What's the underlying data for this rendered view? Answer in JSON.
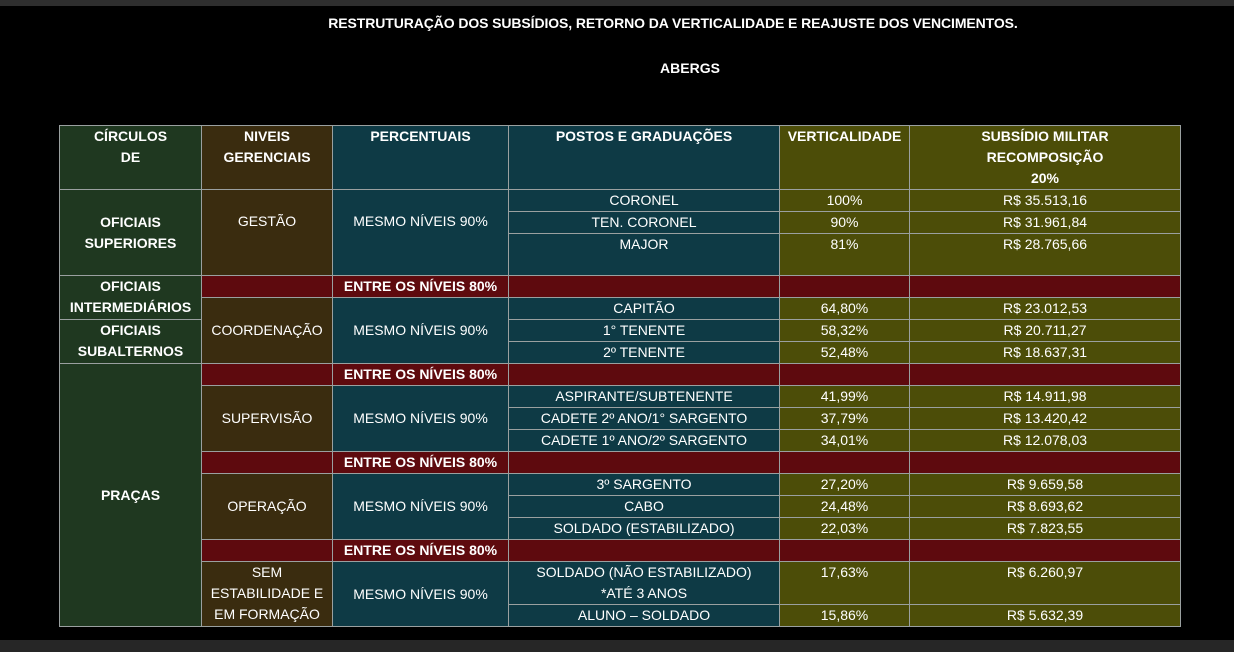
{
  "title": "RESTRUTURAÇÃO DOS SUBSÍDIOS, RETORNO DA VERTICALIDADE E REAJUSTE DOS VENCIMENTOS.",
  "subtitle": "ABERGS",
  "colors": {
    "background": "#000000",
    "circulos": "#1f3820",
    "niveis": "#3a2c0f",
    "percentuais_postos": "#0e3a45",
    "verticalidade_subsidio": "#4c4d08",
    "entre_niveis": "#5e0a0e"
  },
  "headers": {
    "circulos": [
      "CÍRCULOS",
      "DE"
    ],
    "niveis": [
      "NIVEIS",
      "GERENCIAIS"
    ],
    "percentuais": "PERCENTUAIS",
    "postos": "POSTOS E GRADUAÇÕES",
    "verticalidade": "VERTICALIDADE",
    "subsidio": [
      "SUBSÍDIO MILITAR",
      "RECOMPOSIÇÃO",
      "20%"
    ]
  },
  "circulos": {
    "oficiais_superiores": [
      "OFICIAIS",
      "SUPERIORES"
    ],
    "oficiais_intermediarios": [
      "OFICIAIS",
      "INTERMEDIÁRIOS"
    ],
    "oficiais_subalternos": [
      "OFICIAIS",
      "SUBALTERNOS"
    ],
    "pracas": "PRAÇAS"
  },
  "niveis": {
    "gestao": "GESTÃO",
    "coordenacao": "COORDENAÇÃO",
    "supervisao": "SUPERVISÃO",
    "operacao": "OPERAÇÃO",
    "sem_estabilidade": [
      "SEM",
      "ESTABILIDADE E",
      "EM FORMAÇÃO"
    ]
  },
  "percentual_grupo": "MESMO NÍVEIS 90%",
  "entre_niveis": "ENTRE OS NÍVEIS 80%",
  "rows": [
    {
      "posto": "CORONEL",
      "verticalidade": "100%",
      "subsidio": "R$ 35.513,16"
    },
    {
      "posto": "TEN. CORONEL",
      "verticalidade": "90%",
      "subsidio": "R$ 31.961,84"
    },
    {
      "posto": "MAJOR",
      "verticalidade": "81%",
      "subsidio": "R$ 28.765,66"
    },
    {
      "posto": "CAPITÃO",
      "verticalidade": "64,80%",
      "subsidio": "R$ 23.012,53"
    },
    {
      "posto": "1° TENENTE",
      "verticalidade": "58,32%",
      "subsidio": "R$ 20.711,27"
    },
    {
      "posto": "2º TENENTE",
      "verticalidade": "52,48%",
      "subsidio": "R$ 18.637,31"
    },
    {
      "posto": "ASPIRANTE/SUBTENENTE",
      "verticalidade": "41,99%",
      "subsidio": "R$ 14.911,98"
    },
    {
      "posto": "CADETE 2º ANO/1° SARGENTO",
      "verticalidade": "37,79%",
      "subsidio": "R$ 13.420,42"
    },
    {
      "posto": "CADETE 1º ANO/2º SARGENTO",
      "verticalidade": "34,01%",
      "subsidio": "R$ 12.078,03"
    },
    {
      "posto": "3º SARGENTO",
      "verticalidade": "27,20%",
      "subsidio": "R$ 9.659,58"
    },
    {
      "posto": "CABO",
      "verticalidade": "24,48%",
      "subsidio": "R$ 8.693,62"
    },
    {
      "posto": "SOLDADO (ESTABILIZADO)",
      "verticalidade": "22,03%",
      "subsidio": "R$ 7.823,55"
    },
    {
      "posto": [
        "SOLDADO (NÃO ESTABILIZADO)",
        "*ATÉ 3 ANOS"
      ],
      "verticalidade": "17,63%",
      "subsidio": "R$ 6.260,97"
    },
    {
      "posto": "ALUNO – SOLDADO",
      "verticalidade": "15,86%",
      "subsidio": "R$ 5.632,39"
    }
  ]
}
